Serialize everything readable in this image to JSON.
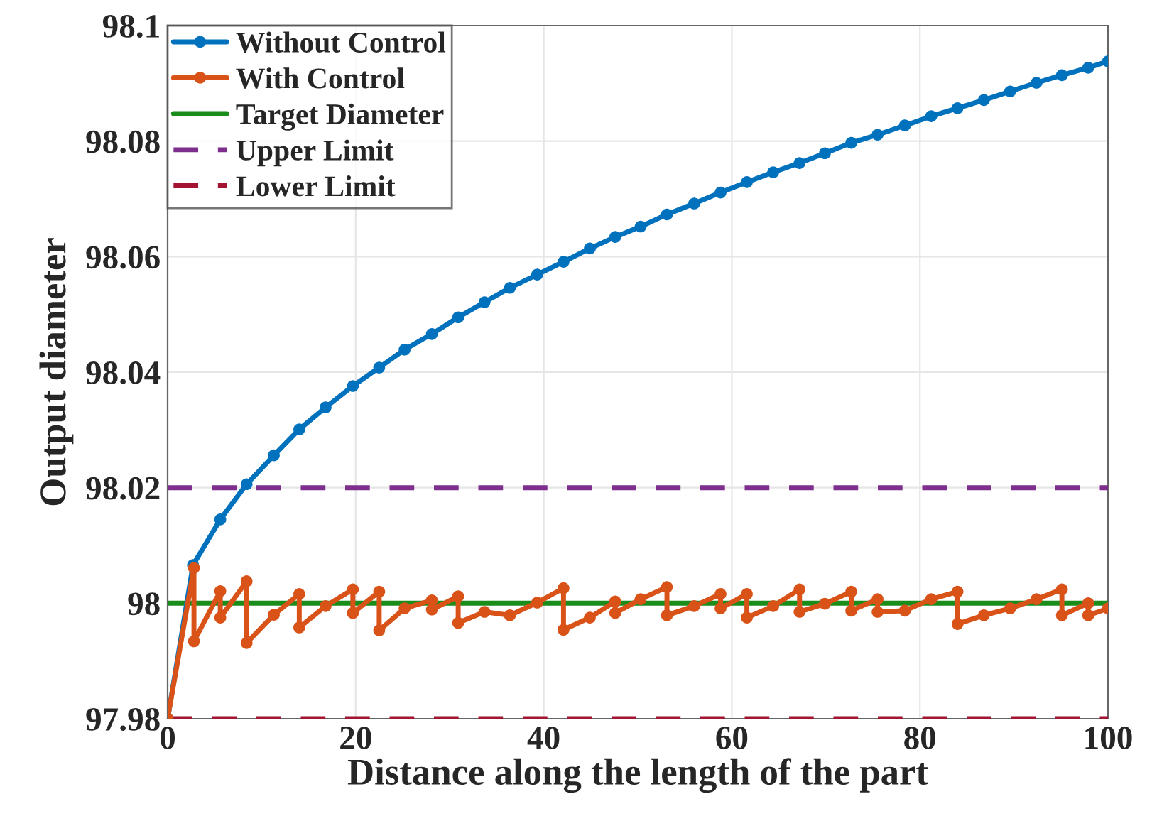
{
  "chart_data": {
    "type": "line",
    "xlabel": "Distance along the length of the part",
    "ylabel": "Output diameter",
    "xlim": [
      0,
      100
    ],
    "xticks": [
      0,
      20,
      40,
      60,
      80,
      100
    ],
    "ylim": [
      97.98,
      98.1
    ],
    "yticks": [
      97.98,
      98,
      98.02,
      98.04,
      98.06,
      98.08,
      98.1
    ],
    "grid": true,
    "legend": "top left",
    "marker": "circle",
    "line_style": "solid",
    "series": [
      {
        "name": "Without Control",
        "color": "#0072bd",
        "x": [
          0,
          2.7,
          5.6,
          8.4,
          11.3,
          14.0,
          16.8,
          19.7,
          22.5,
          25.2,
          28.1,
          30.9,
          33.7,
          36.4,
          39.3,
          42.1,
          44.9,
          47.6,
          50.3,
          53.1,
          56.0,
          58.8,
          61.6,
          64.4,
          67.2,
          69.9,
          72.7,
          75.5,
          78.4,
          81.2,
          84.0,
          86.8,
          89.6,
          92.4,
          95.1,
          97.9,
          100
        ],
        "values": [
          97.98,
          98.0066,
          98.0145,
          98.0206,
          98.0256,
          98.0301,
          98.0339,
          98.0376,
          98.0408,
          98.0439,
          98.0466,
          98.0495,
          98.0521,
          98.0546,
          98.0569,
          98.0591,
          98.0614,
          98.0634,
          98.0652,
          98.0673,
          98.0692,
          98.0711,
          98.0729,
          98.0746,
          98.0762,
          98.0779,
          98.0797,
          98.0811,
          98.0827,
          98.0843,
          98.0857,
          98.0871,
          98.0886,
          98.0901,
          98.0914,
          98.0927,
          98.0938
        ]
      },
      {
        "name": "With Control",
        "color": "#d95319",
        "x": [
          0,
          2.8,
          2.8,
          5.6,
          5.6,
          8.4,
          8.4,
          11.3,
          14.0,
          14.0,
          16.8,
          19.7,
          19.7,
          22.5,
          22.5,
          25.2,
          28.1,
          28.1,
          30.9,
          30.9,
          33.7,
          36.4,
          39.3,
          42.1,
          42.1,
          44.9,
          47.6,
          47.6,
          50.3,
          53.1,
          53.1,
          56.0,
          58.8,
          58.8,
          61.6,
          61.6,
          64.4,
          67.2,
          67.2,
          69.9,
          72.7,
          72.7,
          75.5,
          75.5,
          78.4,
          81.2,
          84.0,
          84.0,
          86.8,
          89.6,
          92.4,
          95.1,
          95.1,
          97.9,
          97.9,
          100
        ],
        "values": [
          97.98,
          98.0061,
          97.9934,
          98.0021,
          97.9975,
          98.0038,
          97.9931,
          97.998,
          98.0016,
          97.9958,
          97.9995,
          98.0024,
          97.9983,
          98.002,
          97.9953,
          97.9991,
          98.0005,
          97.9989,
          98.0012,
          97.9966,
          97.9985,
          97.9979,
          98.0001,
          98.0026,
          97.9954,
          97.9975,
          98.0003,
          97.9983,
          98.0007,
          98.0028,
          97.9979,
          97.9995,
          98.0016,
          97.9991,
          98.0016,
          97.9975,
          97.9995,
          98.0024,
          97.9985,
          97.9999,
          98.002,
          97.9987,
          98.0007,
          97.9985,
          97.9987,
          98.0007,
          98.002,
          97.9964,
          97.9979,
          97.9991,
          98.0007,
          98.0024,
          97.9979,
          98.0,
          97.9979,
          97.9991
        ]
      }
    ],
    "ref_lines": [
      {
        "axis": "y",
        "value": 98,
        "label": "Target Diameter",
        "color": "#1a8c1a",
        "line_style": "solid"
      },
      {
        "axis": "y",
        "value": 98.02,
        "label": "Upper Limit",
        "color": "#7e2f8e",
        "line_style": "dashed"
      },
      {
        "axis": "y",
        "value": 97.98,
        "label": "Lower Limit",
        "color": "#a2142f",
        "line_style": "dashed"
      }
    ]
  }
}
